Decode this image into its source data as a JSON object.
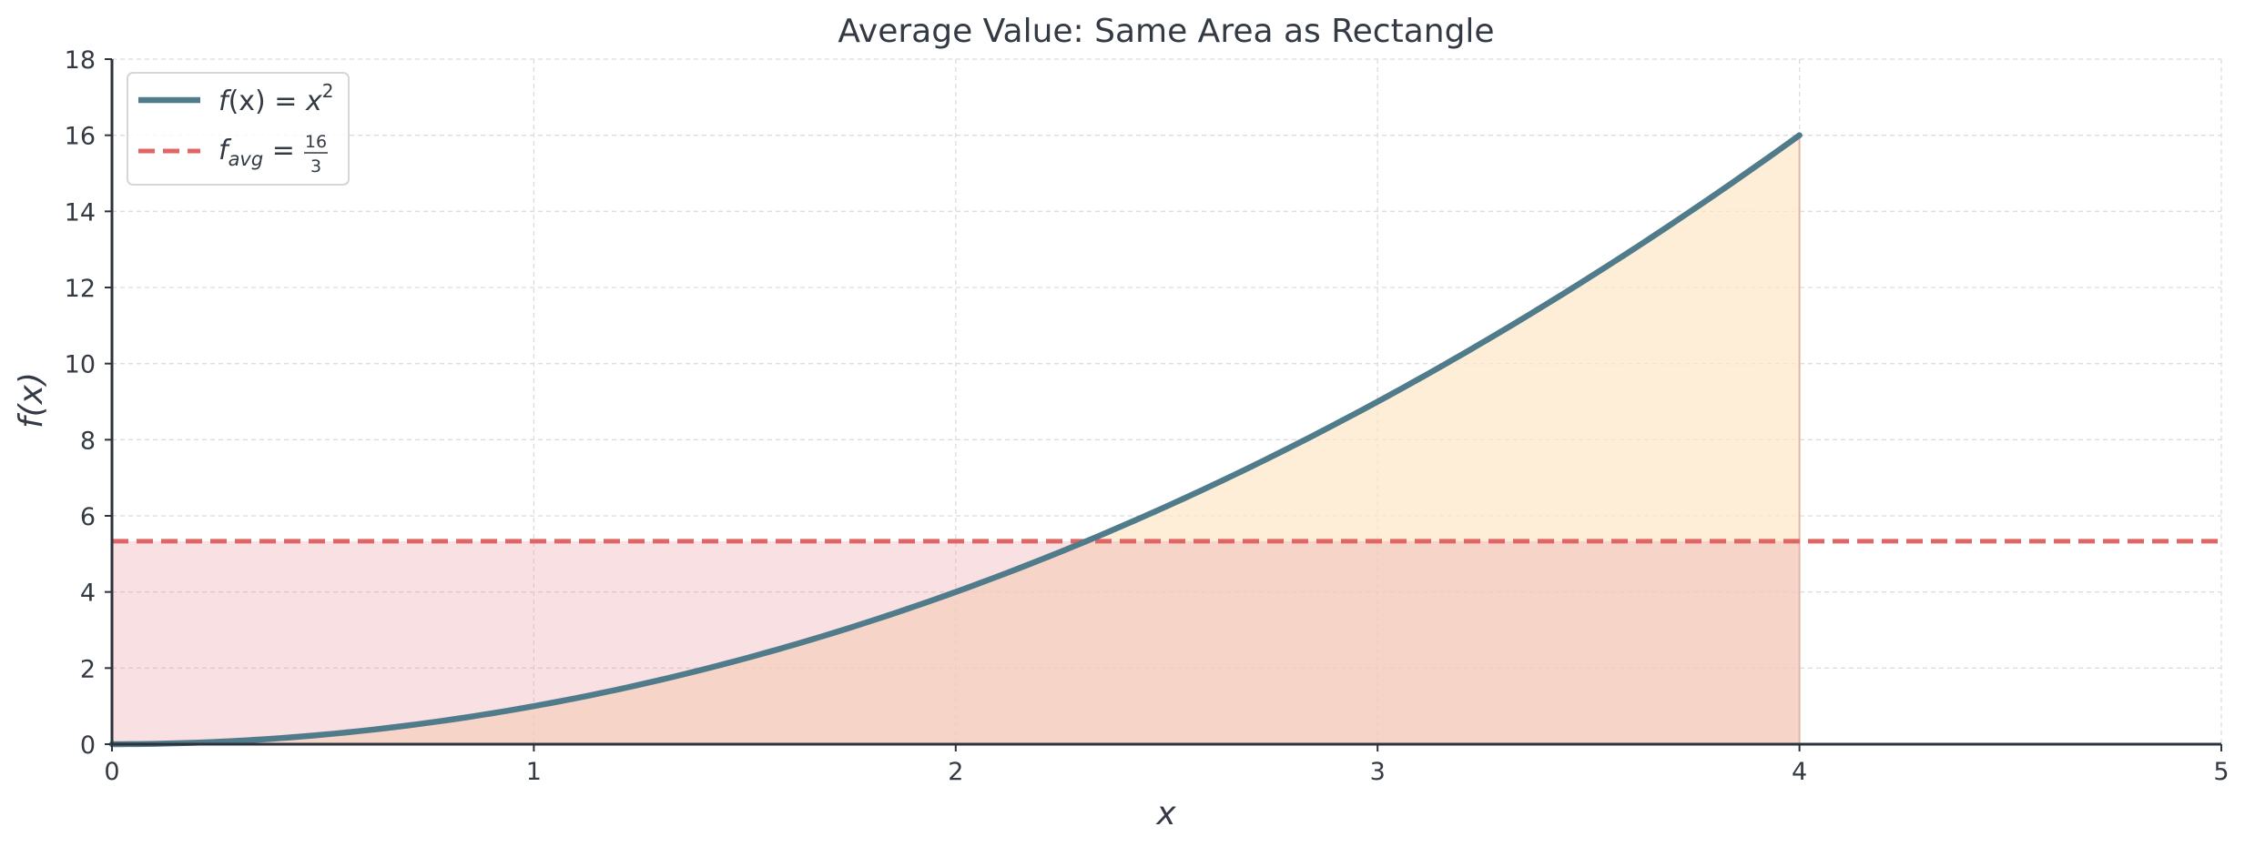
{
  "chart_data": {
    "type": "line",
    "title": "Average Value: Same Area as Rectangle",
    "xlabel": "x",
    "ylabel": "f(x)",
    "xlim": [
      0,
      5
    ],
    "ylim": [
      0,
      18
    ],
    "xticks": [
      0,
      1,
      2,
      3,
      4,
      5
    ],
    "yticks": [
      0,
      2,
      4,
      6,
      8,
      10,
      12,
      14,
      16,
      18
    ],
    "grid": true,
    "legend_position": "top-left",
    "series": [
      {
        "name": "f(x) = x^2",
        "kind": "curve",
        "expression": "x^2",
        "domain": [
          0,
          4
        ],
        "points": [
          [
            0,
            0
          ],
          [
            0.5,
            0.25
          ],
          [
            1,
            1
          ],
          [
            1.5,
            2.25
          ],
          [
            2,
            4
          ],
          [
            2.5,
            6.25
          ],
          [
            3,
            9
          ],
          [
            3.5,
            12.25
          ],
          [
            4,
            16
          ]
        ],
        "color": "#507b8a"
      },
      {
        "name": "f_avg = 16/3",
        "kind": "hline",
        "value": 5.3333,
        "domain": [
          0,
          5
        ],
        "color": "#e06666"
      }
    ],
    "fills": [
      {
        "name": "area-under-curve",
        "domain": [
          0,
          4
        ],
        "color": "#fde7c8"
      },
      {
        "name": "average-rectangle",
        "domain": [
          0,
          4
        ],
        "height": 5.3333,
        "color": "#e8a0a8"
      }
    ],
    "legend": {
      "curve": {
        "lhs": "f",
        "arg": "(x) = ",
        "var": "x",
        "sup": "2"
      },
      "avg": {
        "f": "f",
        "sub": "avg",
        "eq": " = ",
        "num": "16",
        "den": "3"
      }
    }
  }
}
